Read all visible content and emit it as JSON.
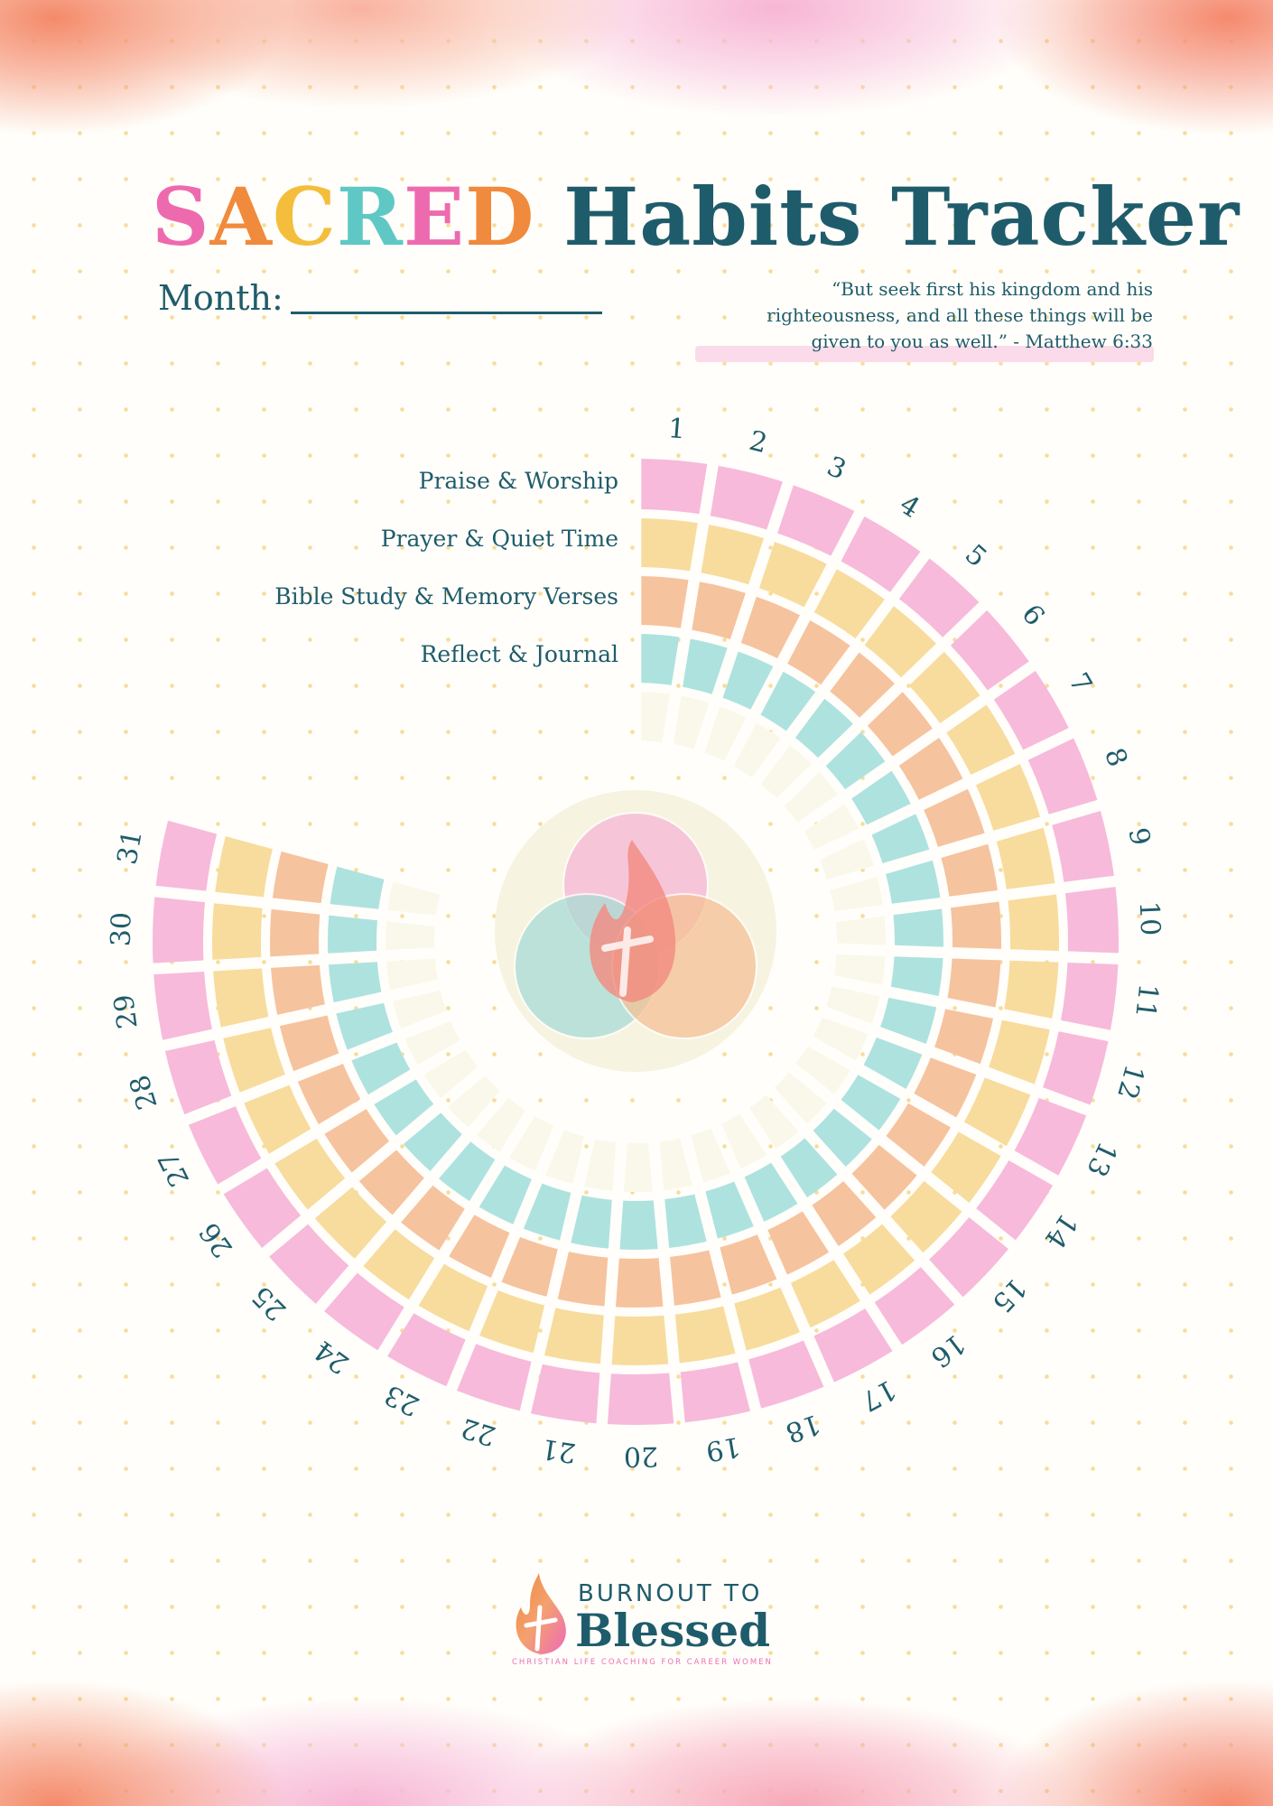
{
  "title": {
    "sacred_letters": [
      {
        "ch": "S",
        "color": "#ee6aaf"
      },
      {
        "ch": "A",
        "color": "#f08a3c"
      },
      {
        "ch": "C",
        "color": "#f4be3c"
      },
      {
        "ch": "R",
        "color": "#5fc8c4"
      },
      {
        "ch": "E",
        "color": "#ee6aaf"
      },
      {
        "ch": "D",
        "color": "#f08a3c"
      }
    ],
    "rest": "Habits Tracker"
  },
  "month_label": "Month:",
  "quote": [
    "“But seek first his kingdom and his",
    "righteousness, and all these things will be",
    "given to you as well.” - Matthew 6:33"
  ],
  "habits": [
    {
      "label": "Praise & Worship",
      "color": "#f7badb"
    },
    {
      "label": "Prayer & Quiet Time",
      "color": "#f7dc9e"
    },
    {
      "label": "Bible Study & Memory Verses",
      "color": "#f6c39f"
    },
    {
      "label": "Reflect & Journal",
      "color": "#aee2df"
    }
  ],
  "extra_ring_color": "#faf8ea",
  "days": [
    "1",
    "2",
    "3",
    "4",
    "5",
    "6",
    "7",
    "8",
    "9",
    "10",
    "11",
    "12",
    "13",
    "14",
    "15",
    "16",
    "17",
    "18",
    "19",
    "20",
    "21",
    "22",
    "23",
    "24",
    "25",
    "26",
    "27",
    "28",
    "29",
    "30",
    "31"
  ],
  "logo": {
    "line1": "BURNOUT TO",
    "line2": "Blessed",
    "tagline": "CHRISTIAN LIFE COACHING FOR CAREER WOMEN"
  },
  "colors": {
    "text": "#1f5c6b",
    "accent_pink": "#ee6aaf"
  }
}
